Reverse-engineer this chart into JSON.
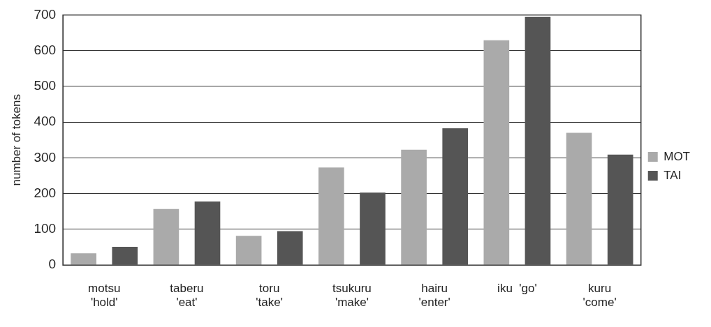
{
  "chart_data": {
    "type": "bar",
    "ylabel": "number of tokens",
    "categories": [
      "motsu\n'hold'",
      "taberu\n'eat'",
      "toru\n'take'",
      "tsukuru\n'make'",
      "hairu\n'enter'",
      "iku  'go'",
      "kuru\n'come'"
    ],
    "series": [
      {
        "name": "MOT",
        "color": "#aaaaaa",
        "values": [
          33,
          157,
          82,
          273,
          323,
          629,
          370
        ]
      },
      {
        "name": "TAI",
        "color": "#555555",
        "values": [
          51,
          178,
          95,
          203,
          383,
          695,
          309
        ]
      }
    ],
    "ylim": [
      0,
      700
    ],
    "yticks": [
      0,
      100,
      200,
      300,
      400,
      500,
      600,
      700
    ],
    "grid": "y",
    "legend": "right"
  }
}
